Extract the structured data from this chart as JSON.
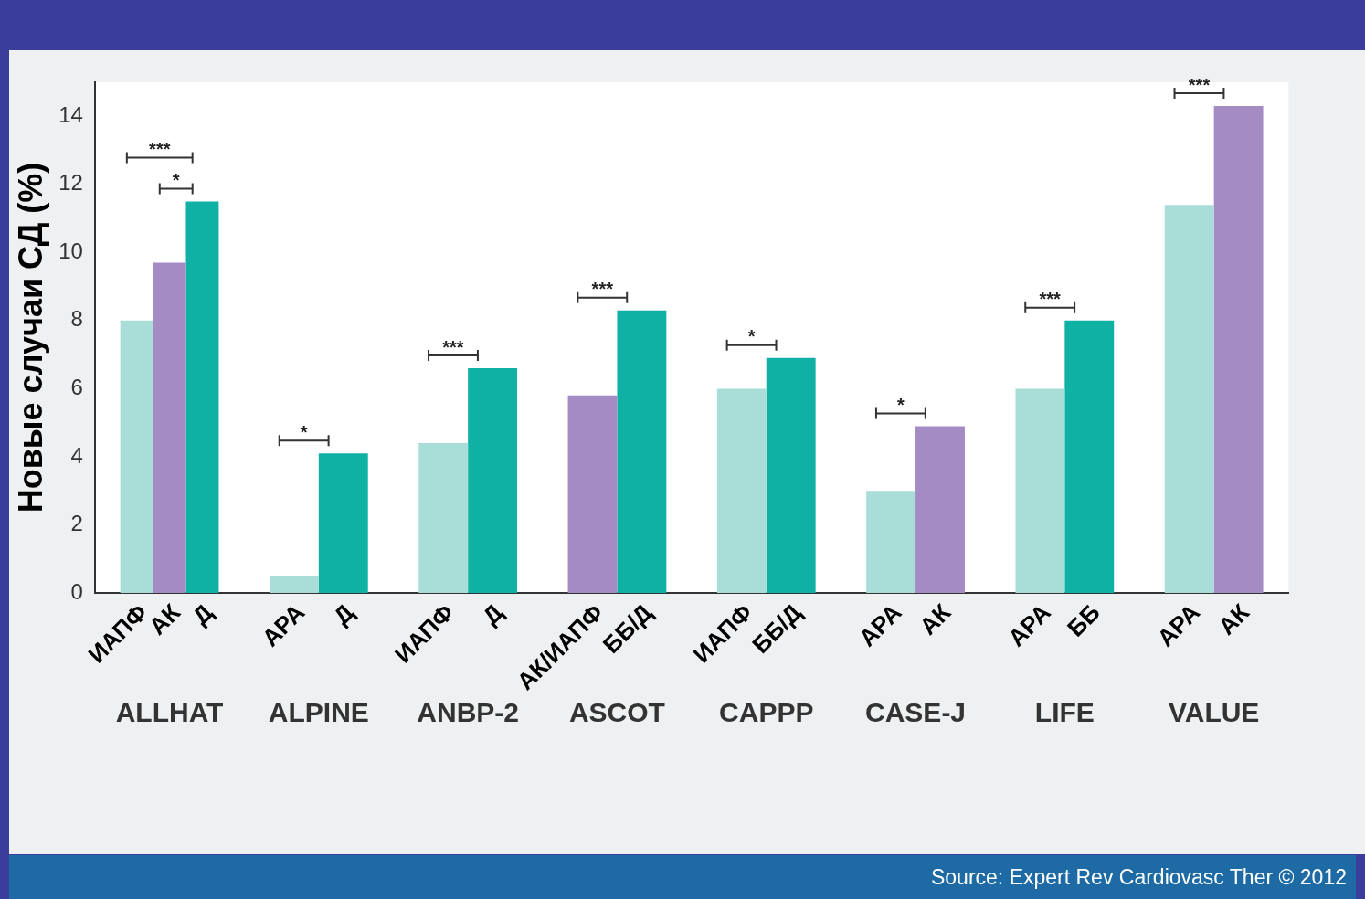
{
  "chart_data": {
    "type": "bar",
    "ylabel": "Новые случаи СД (%)",
    "categories": [
      "ALLHAT",
      "ALPINE",
      "ANBP-2",
      "ASCOT",
      "CAPPP",
      "CASE-J",
      "LIFE",
      "VALUE"
    ],
    "series": [
      {
        "color": "#a9ddd7",
        "values": [
          8.0,
          0.5,
          4.4,
          null,
          6.0,
          3.0,
          6.0,
          11.4
        ]
      },
      {
        "color": "#a48bc3",
        "values": [
          9.7,
          null,
          null,
          5.8,
          null,
          4.9,
          null,
          14.3
        ]
      },
      {
        "color": "#10b1a5",
        "values": [
          11.5,
          4.1,
          6.6,
          8.3,
          6.9,
          null,
          8.0,
          null
        ]
      }
    ],
    "ylim": [
      0,
      15
    ],
    "yticks": [
      0,
      2,
      4,
      6,
      8,
      10,
      12,
      14
    ],
    "grid": false,
    "legend": false,
    "annotations": [
      "ИАПФ",
      "АК",
      "Д",
      "АРА",
      "Д",
      "ИАПФ",
      "Д",
      "АК/ИАПФ",
      "ББ/Д",
      "ИАПФ",
      "ББ/Д",
      "АРА",
      "АК",
      "АРА",
      "ББ",
      "АРА",
      "АК",
      "***",
      "*",
      "*",
      "***",
      "***",
      "*",
      "*",
      "***",
      "***",
      "Source: Expert Rev Cardiovasc Ther © 2012"
    ]
  }
}
